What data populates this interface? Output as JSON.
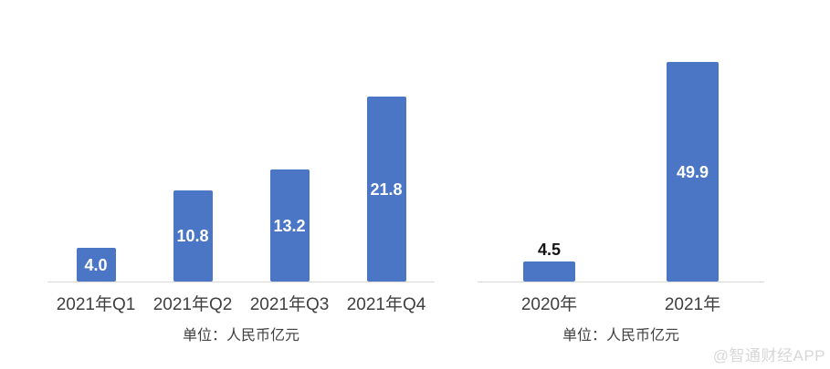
{
  "watermark": "@智通财经APP",
  "chart_data": [
    {
      "type": "bar",
      "title": "",
      "categories": [
        "2021年Q1",
        "2021年Q2",
        "2021年Q3",
        "2021年Q4"
      ],
      "values": [
        4.0,
        10.8,
        13.2,
        21.8
      ],
      "value_labels": [
        "4.0",
        "10.8",
        "13.2",
        "21.8"
      ],
      "xlabel": "",
      "ylabel": "",
      "footnote": "单位：人民币亿元",
      "bar_color": "#4b76c5",
      "value_label_color_inside": "#ffffff",
      "value_label_color_above": "#141414",
      "axis_line_color": "#d9d9d9",
      "grid": false,
      "legend_position": "none"
    },
    {
      "type": "bar",
      "title": "",
      "categories": [
        "2020年",
        "2021年"
      ],
      "values": [
        4.5,
        49.9
      ],
      "value_labels": [
        "4.5",
        "49.9"
      ],
      "xlabel": "",
      "ylabel": "",
      "footnote": "单位：人民币亿元",
      "bar_color": "#4b76c5",
      "value_label_color_inside": "#ffffff",
      "value_label_color_above": "#141414",
      "axis_line_color": "#d9d9d9",
      "grid": false,
      "legend_position": "none"
    }
  ]
}
